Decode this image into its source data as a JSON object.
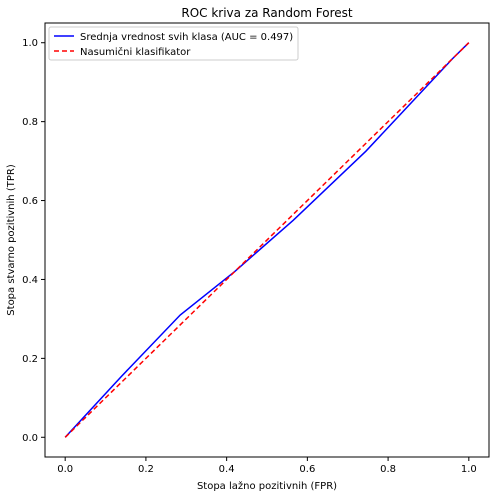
{
  "chart_data": {
    "type": "line",
    "title": "ROC kriva za Random Forest",
    "xlabel": "Stopa lažno pozitivnih (FPR)",
    "ylabel": "Stopa stvarno pozitivnih (TPR)",
    "xlim": [
      -0.05,
      1.05
    ],
    "ylim": [
      -0.05,
      1.05
    ],
    "xticks": [
      0.0,
      0.2,
      0.4,
      0.6,
      0.8,
      1.0
    ],
    "yticks": [
      0.0,
      0.2,
      0.4,
      0.6,
      0.8,
      1.0
    ],
    "xtick_labels": [
      "0.0",
      "0.2",
      "0.4",
      "0.6",
      "0.8",
      "1.0"
    ],
    "ytick_labels": [
      "0.0",
      "0.2",
      "0.4",
      "0.6",
      "0.8",
      "1.0"
    ],
    "grid": false,
    "legend_position": "top-left",
    "series": [
      {
        "name": "Srednja vrednost svih klasa (AUC = 0.497)",
        "color": "#0000ff",
        "style": "solid",
        "x": [
          0.0,
          0.14,
          0.285,
          0.42,
          0.565,
          0.745,
          0.96,
          1.0
        ],
        "y": [
          0.0,
          0.155,
          0.31,
          0.42,
          0.55,
          0.725,
          0.96,
          1.0
        ]
      },
      {
        "name": "Nasumični klasifikator",
        "color": "#ff0000",
        "style": "dashed",
        "x": [
          0.0,
          1.0
        ],
        "y": [
          0.0,
          1.0
        ]
      }
    ]
  }
}
